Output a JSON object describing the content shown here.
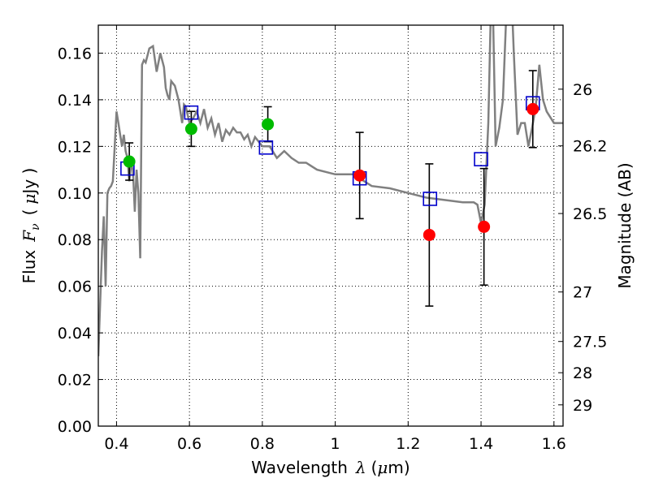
{
  "chart_data": {
    "type": "scatter",
    "xlabel": {
      "prefix": "Wavelength",
      "symbol": "λ",
      "unit_open": "(",
      "unit_mu": "μ",
      "unit_rest": "m)"
    },
    "ylabel": {
      "prefix": "Flux",
      "symbol": "F",
      "subscript": "ν",
      "unit_open": "(",
      "unit_mu": "μ",
      "unit_rest": "Jy )"
    },
    "y2label": "Magnitude (AB)",
    "xlim": [
      0.35,
      1.625
    ],
    "ylim": [
      0.0,
      0.172
    ],
    "grid": true,
    "x_ticks": [
      {
        "value": 0.4,
        "label": "0.4"
      },
      {
        "value": 0.6,
        "label": "0.6"
      },
      {
        "value": 0.8,
        "label": "0.8"
      },
      {
        "value": 1.0,
        "label": "1"
      },
      {
        "value": 1.2,
        "label": "1.2"
      },
      {
        "value": 1.4,
        "label": "1.4"
      },
      {
        "value": 1.6,
        "label": "1.6"
      }
    ],
    "y_ticks": [
      {
        "value": 0.0,
        "label": "0.00"
      },
      {
        "value": 0.02,
        "label": "0.02"
      },
      {
        "value": 0.04,
        "label": "0.04"
      },
      {
        "value": 0.06,
        "label": "0.06"
      },
      {
        "value": 0.08,
        "label": "0.08"
      },
      {
        "value": 0.1,
        "label": "0.10"
      },
      {
        "value": 0.12,
        "label": "0.12"
      },
      {
        "value": 0.14,
        "label": "0.14"
      },
      {
        "value": 0.16,
        "label": "0.16"
      }
    ],
    "y2_ticks": [
      {
        "mag": 26.0,
        "label": "26"
      },
      {
        "mag": 26.2,
        "label": "26.2"
      },
      {
        "mag": 26.5,
        "label": "26.5"
      },
      {
        "mag": 27.0,
        "label": "27"
      },
      {
        "mag": 27.5,
        "label": "27.5"
      },
      {
        "mag": 28.0,
        "label": "28"
      },
      {
        "mag": 29.0,
        "label": "29"
      }
    ],
    "colors": {
      "model": "#808080",
      "green_points": "#00bb00",
      "red_points": "#ff0000",
      "model_boxes": "#0000cc",
      "errorbars": "#000000"
    },
    "series": [
      {
        "kind": "model-spectrum",
        "x": [
          0.35,
          0.36,
          0.365,
          0.37,
          0.375,
          0.38,
          0.385,
          0.39,
          0.395,
          0.4,
          0.405,
          0.41,
          0.415,
          0.42,
          0.425,
          0.43,
          0.435,
          0.44,
          0.445,
          0.45,
          0.455,
          0.46,
          0.465,
          0.47,
          0.475,
          0.48,
          0.49,
          0.5,
          0.51,
          0.52,
          0.53,
          0.535,
          0.54,
          0.545,
          0.55,
          0.56,
          0.57,
          0.58,
          0.585,
          0.59,
          0.6,
          0.61,
          0.62,
          0.63,
          0.64,
          0.65,
          0.66,
          0.67,
          0.68,
          0.69,
          0.7,
          0.71,
          0.72,
          0.73,
          0.74,
          0.75,
          0.76,
          0.77,
          0.78,
          0.8,
          0.82,
          0.84,
          0.86,
          0.88,
          0.9,
          0.92,
          0.95,
          1.0,
          1.05,
          1.1,
          1.15,
          1.2,
          1.25,
          1.3,
          1.35,
          1.38,
          1.39,
          1.4,
          1.41,
          1.42,
          1.43,
          1.44,
          1.45,
          1.46,
          1.47,
          1.48,
          1.49,
          1.5,
          1.51,
          1.52,
          1.53,
          1.54,
          1.55,
          1.56,
          1.57,
          1.58,
          1.6,
          1.625
        ],
        "y": [
          0.03,
          0.075,
          0.09,
          0.06,
          0.1,
          0.102,
          0.103,
          0.105,
          0.12,
          0.135,
          0.13,
          0.125,
          0.12,
          0.125,
          0.118,
          0.115,
          0.105,
          0.112,
          0.11,
          0.092,
          0.11,
          0.1,
          0.072,
          0.155,
          0.157,
          0.156,
          0.162,
          0.163,
          0.152,
          0.16,
          0.154,
          0.145,
          0.142,
          0.14,
          0.148,
          0.146,
          0.14,
          0.13,
          0.138,
          0.137,
          0.13,
          0.132,
          0.135,
          0.13,
          0.136,
          0.128,
          0.132,
          0.125,
          0.13,
          0.122,
          0.127,
          0.125,
          0.128,
          0.126,
          0.126,
          0.123,
          0.125,
          0.12,
          0.124,
          0.12,
          0.12,
          0.115,
          0.118,
          0.115,
          0.113,
          0.113,
          0.11,
          0.108,
          0.108,
          0.103,
          0.102,
          0.1,
          0.098,
          0.097,
          0.096,
          0.096,
          0.095,
          0.087,
          0.095,
          0.13,
          0.2,
          0.12,
          0.128,
          0.14,
          0.18,
          0.2,
          0.16,
          0.125,
          0.13,
          0.13,
          0.12,
          0.128,
          0.137,
          0.155,
          0.14,
          0.135,
          0.13,
          0.13
        ]
      },
      {
        "kind": "green-circles",
        "x": [
          0.435,
          0.605,
          0.815
        ],
        "y": [
          0.1135,
          0.1275,
          0.1295
        ],
        "yerr": [
          0.008,
          0.0075,
          0.0075
        ]
      },
      {
        "kind": "red-circles",
        "x": [
          1.067,
          1.258,
          1.408,
          1.542
        ],
        "y": [
          0.1075,
          0.082,
          0.0855,
          0.136
        ],
        "yerr": [
          0.0185,
          0.0305,
          0.025,
          0.0165
        ]
      },
      {
        "kind": "model-boxes",
        "x": [
          0.43,
          0.605,
          0.81,
          1.067,
          1.26,
          1.4,
          1.542
        ],
        "y": [
          0.1105,
          0.1345,
          0.1195,
          0.1063,
          0.0975,
          0.1145,
          0.1385
        ]
      }
    ]
  }
}
